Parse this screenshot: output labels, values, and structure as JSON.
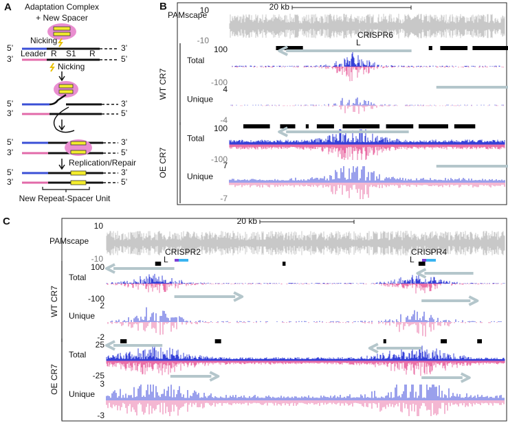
{
  "panel_a": {
    "label": "A",
    "complex": [
      "Adaptation Complex",
      "+ New Spacer"
    ],
    "nicking": "Nicking",
    "prime5": "5’",
    "prime3": "3’",
    "leader": "Leader",
    "repeat": "R",
    "spacer": "S1",
    "repair": "Replication/Repair",
    "unit": "New Repeat-Spacer Unit"
  },
  "panel_b": {
    "label": "B",
    "pamscape": {
      "name": "PAMscape",
      "ticks": [
        10,
        -10
      ]
    },
    "scale": "20 kb",
    "loci": [
      {
        "name": "CRISPR6",
        "leader": "L"
      }
    ],
    "groups": [
      {
        "name": "WT  CR7",
        "tracks": [
          {
            "name": "Total",
            "ticks": [
              100,
              -100
            ]
          },
          {
            "name": "Unique",
            "ticks": [
              4,
              -4
            ]
          }
        ]
      },
      {
        "name": "OE  CR7",
        "tracks": [
          {
            "name": "Total",
            "ticks": [
              100,
              -100
            ]
          },
          {
            "name": "Unique",
            "ticks": [
              7,
              -7
            ]
          }
        ]
      }
    ]
  },
  "panel_c": {
    "label": "C",
    "pamscape": {
      "name": "PAMscape",
      "ticks": [
        10,
        -10
      ]
    },
    "scale": "20 kb",
    "loci": [
      {
        "name": "CRISPR2",
        "leader": "L"
      },
      {
        "name": "CRISPR4",
        "leader": "L"
      }
    ],
    "groups": [
      {
        "name": "WT  CR7",
        "tracks": [
          {
            "name": "Total",
            "ticks": [
              100,
              -100
            ]
          },
          {
            "name": "Unique",
            "ticks": [
              2,
              -2
            ]
          }
        ]
      },
      {
        "name": "OE  CR7",
        "tracks": [
          {
            "name": "Total",
            "ticks": [
              25,
              -25
            ]
          },
          {
            "name": "Unique",
            "ticks": [
              3,
              -3
            ]
          }
        ]
      }
    ]
  }
}
